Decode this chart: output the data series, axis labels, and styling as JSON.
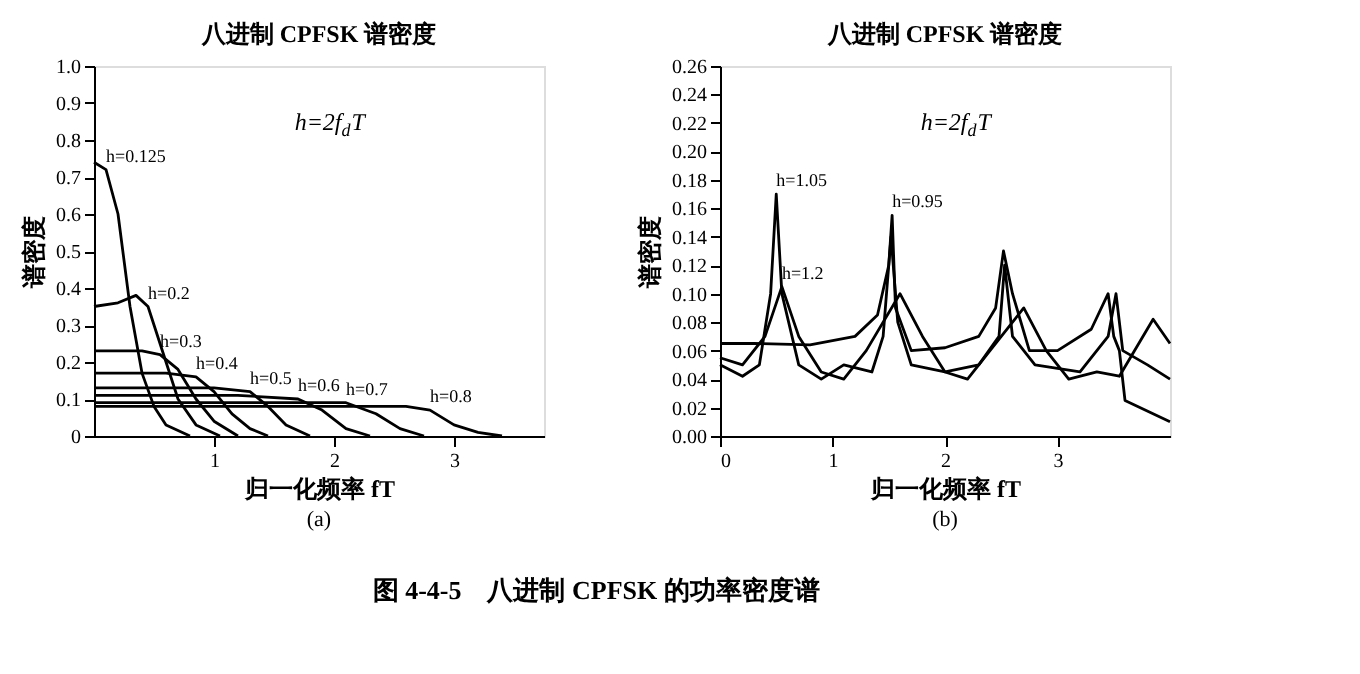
{
  "chart_data": [
    {
      "type": "line",
      "title": "八进制 CPFSK 谱密度",
      "xlabel": "归一化频率 fT",
      "ylabel": "谱密度",
      "annotations": [
        "h=2f$_{d}$T",
        "(a)",
        "图 4-4-5　八进制 CPFSK 的功率密度谱"
      ],
      "xlim": [
        0,
        3.75
      ],
      "ylim": [
        0,
        1.0
      ],
      "xticks": [
        1,
        2,
        3
      ],
      "yticks": [
        0,
        0.1,
        0.2,
        0.3,
        0.4,
        0.5,
        0.6,
        0.7,
        0.8,
        0.9,
        {
          "value": 1.0,
          "label": "1.0"
        }
      ],
      "grid": false,
      "legend": false,
      "marker": "none",
      "line_style": "solid",
      "series": [
        {
          "name": "h=0.125",
          "color": "#000000",
          "x": [
            0,
            0.1,
            0.2,
            0.3,
            0.4,
            0.5,
            0.6,
            0.8
          ],
          "values": [
            0.74,
            0.72,
            0.6,
            0.35,
            0.17,
            0.08,
            0.03,
            0.0
          ]
        },
        {
          "name": "h=0.2",
          "color": "#000000",
          "x": [
            0,
            0.2,
            0.35,
            0.45,
            0.55,
            0.7,
            0.85,
            1.05
          ],
          "values": [
            0.35,
            0.36,
            0.38,
            0.35,
            0.25,
            0.1,
            0.03,
            0.0
          ]
        },
        {
          "name": "h=0.3",
          "color": "#000000",
          "x": [
            0,
            0.4,
            0.55,
            0.7,
            0.85,
            1.0,
            1.2
          ],
          "values": [
            0.23,
            0.23,
            0.22,
            0.18,
            0.1,
            0.04,
            0.0
          ]
        },
        {
          "name": "h=0.4",
          "color": "#000000",
          "x": [
            0,
            0.6,
            0.85,
            1.0,
            1.15,
            1.3,
            1.45
          ],
          "values": [
            0.17,
            0.17,
            0.16,
            0.12,
            0.06,
            0.02,
            0.0
          ]
        },
        {
          "name": "h=0.5",
          "color": "#000000",
          "x": [
            0,
            1.0,
            1.3,
            1.45,
            1.6,
            1.8
          ],
          "values": [
            0.13,
            0.13,
            0.12,
            0.08,
            0.03,
            0.0
          ]
        },
        {
          "name": "h=0.6",
          "color": "#000000",
          "x": [
            0,
            1.2,
            1.7,
            1.9,
            2.1,
            2.3
          ],
          "values": [
            0.11,
            0.11,
            0.1,
            0.07,
            0.02,
            0.0
          ]
        },
        {
          "name": "h=0.7",
          "color": "#000000",
          "x": [
            0,
            1.5,
            2.1,
            2.35,
            2.55,
            2.75
          ],
          "values": [
            0.09,
            0.09,
            0.09,
            0.06,
            0.02,
            0.0
          ]
        },
        {
          "name": "h=0.8",
          "color": "#000000",
          "x": [
            0,
            2.0,
            2.6,
            2.8,
            3.0,
            3.2,
            3.4
          ],
          "values": [
            0.08,
            0.08,
            0.08,
            0.07,
            0.03,
            0.01,
            0.0
          ]
        }
      ]
    },
    {
      "type": "line",
      "title": "八进制 CPFSK 谱密度",
      "xlabel": "归一化频率 fT",
      "ylabel": "谱密度",
      "annotations": [
        "h=2f$_{d}$T",
        "(b)"
      ],
      "xlim": [
        0,
        4
      ],
      "ylim": [
        0,
        0.26
      ],
      "xticks": [
        0,
        1,
        2,
        3
      ],
      "yticks": [
        {
          "value": 0,
          "label": "0.00"
        },
        {
          "value": 0.02,
          "label": "0.02"
        },
        {
          "value": 0.04,
          "label": "0.04"
        },
        {
          "value": 0.06,
          "label": "0.06"
        },
        {
          "value": 0.08,
          "label": "0.08"
        },
        {
          "value": 0.1,
          "label": "0.10"
        },
        {
          "value": 0.12,
          "label": "0.12"
        },
        {
          "value": 0.14,
          "label": "0.14"
        },
        {
          "value": 0.16,
          "label": "0.16"
        },
        {
          "value": 0.18,
          "label": "0.18"
        },
        {
          "value": 0.2,
          "label": "0.20"
        },
        {
          "value": 0.22,
          "label": "0.22"
        },
        {
          "value": 0.24,
          "label": "0.24"
        },
        {
          "value": 0.26,
          "label": "0.26"
        }
      ],
      "grid": false,
      "legend": false,
      "marker": "none",
      "line_style": "solid",
      "series": [
        {
          "name": "h=1.05",
          "color": "#000000",
          "x": [
            0,
            0.2,
            0.35,
            0.45,
            0.5,
            0.55,
            0.7,
            0.9,
            1.1,
            1.35,
            1.45,
            1.52,
            1.58,
            1.7,
            2.0,
            2.3,
            2.48,
            2.53,
            2.6,
            2.8,
            3.2,
            3.45,
            3.52,
            3.58,
            3.8,
            4.0
          ],
          "values": [
            0.05,
            0.042,
            0.05,
            0.1,
            0.17,
            0.1,
            0.05,
            0.04,
            0.05,
            0.045,
            0.07,
            0.14,
            0.08,
            0.05,
            0.045,
            0.05,
            0.07,
            0.12,
            0.07,
            0.05,
            0.045,
            0.07,
            0.1,
            0.06,
            0.05,
            0.04
          ]
        },
        {
          "name": "h=1.2",
          "color": "#000000",
          "x": [
            0,
            0.2,
            0.4,
            0.55,
            0.7,
            0.9,
            1.1,
            1.3,
            1.6,
            1.8,
            2.0,
            2.2,
            2.4,
            2.7,
            2.9,
            3.1,
            3.35,
            3.55,
            3.85,
            4.0
          ],
          "values": [
            0.055,
            0.05,
            0.07,
            0.105,
            0.07,
            0.045,
            0.04,
            0.06,
            0.1,
            0.07,
            0.045,
            0.04,
            0.06,
            0.09,
            0.06,
            0.04,
            0.045,
            0.042,
            0.082,
            0.065
          ]
        },
        {
          "name": "h=0.95",
          "color": "#000000",
          "x": [
            0,
            0.3,
            0.8,
            1.2,
            1.4,
            1.5,
            1.53,
            1.56,
            1.7,
            2.0,
            2.3,
            2.45,
            2.52,
            2.6,
            2.75,
            3.0,
            3.3,
            3.45,
            3.5,
            3.55,
            3.6,
            4.0
          ],
          "values": [
            0.065,
            0.065,
            0.064,
            0.07,
            0.085,
            0.12,
            0.155,
            0.09,
            0.06,
            0.062,
            0.07,
            0.09,
            0.13,
            0.1,
            0.06,
            0.06,
            0.075,
            0.1,
            0.07,
            0.06,
            0.025,
            0.01
          ]
        }
      ]
    }
  ]
}
